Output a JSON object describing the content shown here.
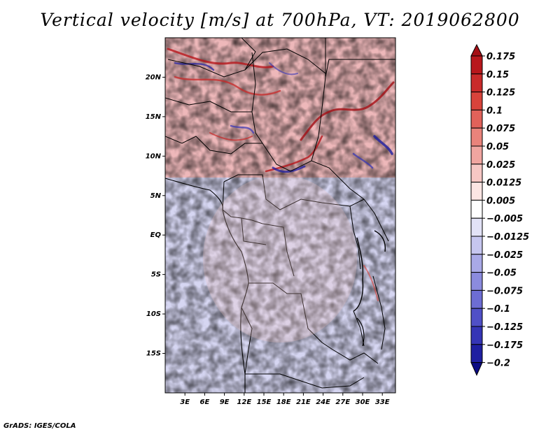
{
  "title": "Vertical velocity [m/s] at 700hPa, VT: 2019062800",
  "credit": "GrADS: IGES/COLA",
  "map": {
    "lon_range": [
      0,
      35
    ],
    "lat_range": [
      -20,
      25
    ],
    "lat_ticks": [
      "20N",
      "15N",
      "10N",
      "5N",
      "EQ",
      "5S",
      "10S",
      "15S"
    ],
    "lat_values": [
      20,
      15,
      10,
      5,
      0,
      -5,
      -10,
      -15
    ],
    "lon_ticks": [
      "3E",
      "6E",
      "9E",
      "12E",
      "15E",
      "18E",
      "21E",
      "24E",
      "27E",
      "30E",
      "33E"
    ],
    "lon_values": [
      3,
      6,
      9,
      12,
      15,
      18,
      21,
      24,
      27,
      30,
      33
    ]
  },
  "colorbar": {
    "labels": [
      "0.175",
      "0.15",
      "0.125",
      "0.1",
      "0.075",
      "0.05",
      "0.025",
      "0.0125",
      "0.005",
      "−0.005",
      "−0.0125",
      "−0.025",
      "−0.05",
      "−0.075",
      "−0.1",
      "−0.125",
      "−0.175",
      "−0.2"
    ],
    "colors": [
      "#a50f15",
      "#b8171c",
      "#c92a2a",
      "#d8433b",
      "#e1625a",
      "#e9837b",
      "#f0a5a0",
      "#f6c7c4",
      "#fbe5e3",
      "#ffffff",
      "#e2e2f6",
      "#c6c6ef",
      "#a9a9e7",
      "#8b8bde",
      "#6d6dd4",
      "#5050c7",
      "#3535b6",
      "#1f1fa1",
      "#0b0b83"
    ]
  }
}
